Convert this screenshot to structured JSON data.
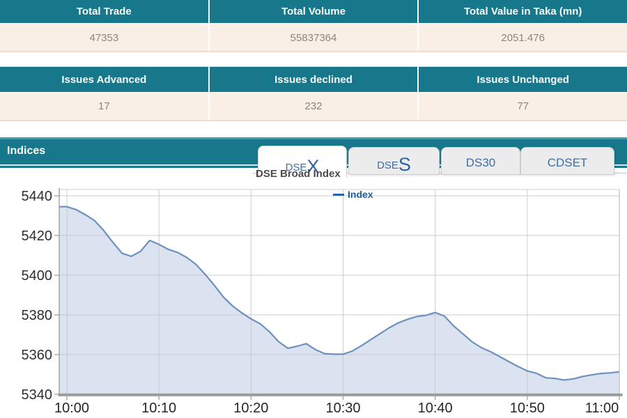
{
  "summary_tables": [
    {
      "headers": [
        "Total Trade",
        "Total Volume",
        "Total Value in Taka (mn)"
      ],
      "values": [
        "47353",
        "55837364",
        "2051.476"
      ]
    },
    {
      "headers": [
        "Issues Advanced",
        "Issues declined",
        "Issues Unchanged"
      ],
      "values": [
        "17",
        "232",
        "77"
      ]
    }
  ],
  "indices": {
    "title": "Indices",
    "tabs": [
      {
        "prefix": "DSE",
        "big": "X",
        "active": true
      },
      {
        "prefix": "DSE",
        "big": "S",
        "active": false
      },
      {
        "label": "DS30",
        "active": false
      },
      {
        "label": "CDSET",
        "active": false
      }
    ]
  },
  "chart_data": {
    "type": "area",
    "title": "DSE Broad Index",
    "legend": [
      {
        "label": "Index",
        "color": "#2a62a9"
      }
    ],
    "x_labels": [
      "10:00",
      "10:10",
      "10:20",
      "10:30",
      "10:40",
      "10:50",
      "11:00"
    ],
    "y_ticks": [
      5340,
      5360,
      5380,
      5400,
      5420,
      5440
    ],
    "ylim": [
      5340,
      5443
    ],
    "grid": true,
    "legend_position": "top-center",
    "line_color": "#6e90c0",
    "fill_color": "#dbe2f0",
    "series": [
      {
        "name": "Index",
        "interval_minutes": 1,
        "values": [
          5434.5,
          5433,
          5430.5,
          5427.5,
          5422.5,
          5416.5,
          5411,
          5409.5,
          5412,
          5417.5,
          5415.5,
          5413,
          5411.5,
          5409,
          5405.5,
          5400.5,
          5395,
          5389,
          5384.5,
          5381,
          5378,
          5375.5,
          5371.5,
          5366.5,
          5363.2,
          5364.2,
          5365.5,
          5362.5,
          5360.5,
          5360.2,
          5360.2,
          5361.8,
          5364.5,
          5367.5,
          5370.5,
          5373.5,
          5376,
          5377.8,
          5379.2,
          5379.8,
          5381.2,
          5379.4,
          5374.5,
          5370.5,
          5366.5,
          5363.5,
          5361.5,
          5359,
          5356.5,
          5354,
          5351.8,
          5350.6,
          5348.3,
          5348,
          5347.2,
          5347.8,
          5349,
          5349.8,
          5350.5,
          5350.8,
          5351.3
        ]
      }
    ]
  }
}
